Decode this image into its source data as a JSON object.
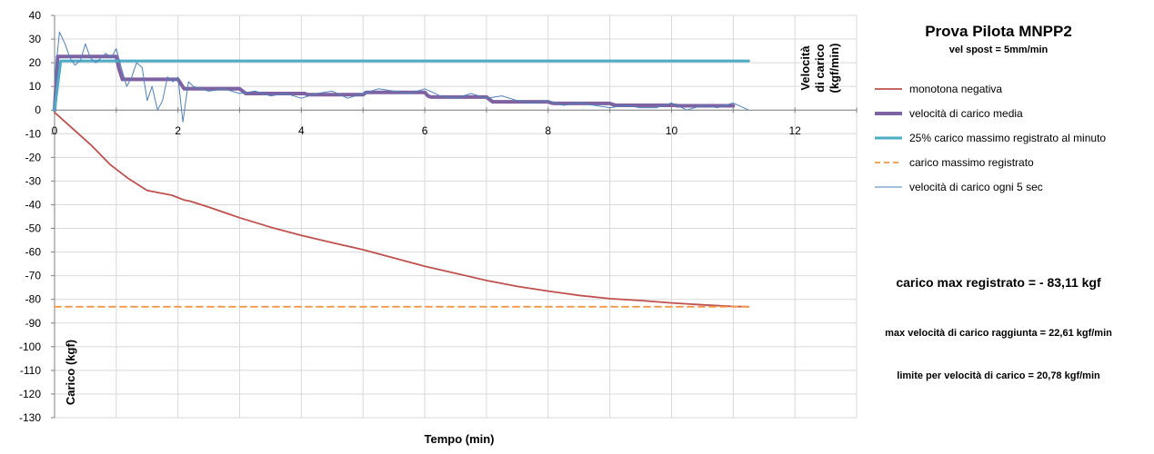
{
  "chart_data": {
    "type": "line",
    "title": "Prova Pilota MNPP2",
    "subtitle": "vel spost = 5mm/min",
    "xlabel": "Tempo (min)",
    "ylabel": "Carico (kgf)",
    "ylabel2": [
      "Velocità",
      "di carico",
      "(kgf/min)"
    ],
    "xlim": [
      0,
      13
    ],
    "ylim": [
      -130,
      40
    ],
    "x_ticks": [
      0,
      2,
      4,
      6,
      8,
      10,
      12
    ],
    "y_ticks": [
      40,
      30,
      20,
      10,
      0,
      -10,
      -20,
      -30,
      -40,
      -50,
      -60,
      -70,
      -80,
      -90,
      -100,
      -110,
      -120,
      -130
    ],
    "grid": true,
    "legend_position": "right",
    "series": [
      {
        "name": "monotona negativa",
        "color": "#C0504D",
        "style": "solid",
        "x": [
          0,
          0.3,
          0.6,
          0.9,
          1.2,
          1.5,
          1.7,
          1.9,
          2.1,
          2.2,
          2.5,
          3.0,
          3.5,
          4.0,
          4.5,
          5.0,
          5.5,
          6.0,
          6.5,
          7.0,
          7.5,
          8.0,
          8.5,
          9.0,
          9.5,
          10.0,
          10.5,
          11.0,
          11.25
        ],
        "y": [
          -1,
          -8,
          -15,
          -23,
          -29,
          -34,
          -35,
          -36,
          -38,
          -38.5,
          -41,
          -45.5,
          -49.5,
          -53,
          -56,
          -59,
          -62.5,
          -66,
          -69,
          -72,
          -74.5,
          -76.5,
          -78.3,
          -79.7,
          -80.5,
          -81.5,
          -82.3,
          -83.0,
          -83.11
        ]
      },
      {
        "name": "velocità di carico media",
        "color": "#7E62A1",
        "style": "thick",
        "x": [
          0,
          0.05,
          0.1,
          1.0,
          1.05,
          1.1,
          2.0,
          2.05,
          2.1,
          3.0,
          3.05,
          3.1,
          4.0,
          4.05,
          4.1,
          5.0,
          5.05,
          5.1,
          6.0,
          6.05,
          6.1,
          7.0,
          7.05,
          7.1,
          8.0,
          8.05,
          8.1,
          9.0,
          9.05,
          9.1,
          10.0,
          10.05,
          10.1,
          11.0
        ],
        "y": [
          0,
          22.6,
          22.6,
          22.6,
          17,
          13,
          13,
          11,
          9,
          9,
          8,
          7,
          7,
          7,
          6.5,
          6.5,
          7.5,
          7.5,
          7.5,
          6,
          5.5,
          5.5,
          4.5,
          3.5,
          3.5,
          3,
          2.8,
          2.8,
          2.3,
          2,
          2,
          2,
          1.8,
          1.8
        ]
      },
      {
        "name": "25% carico massimo  registrato al minuto",
        "color": "#4BACC6",
        "style": "solid-thick",
        "x": [
          0,
          0.1,
          11.25
        ],
        "y": [
          0,
          20.78,
          20.78
        ]
      },
      {
        "name": "carico massimo  registrato",
        "color": "#F79646",
        "style": "dashed",
        "x": [
          0,
          11.25
        ],
        "y": [
          -83.11,
          -83.11
        ]
      },
      {
        "name": "velocità di carico ogni 5 sec",
        "color": "#4F81BD",
        "style": "thin",
        "x": [
          0,
          0.08,
          0.17,
          0.25,
          0.33,
          0.42,
          0.5,
          0.58,
          0.67,
          0.75,
          0.83,
          0.92,
          1.0,
          1.08,
          1.17,
          1.25,
          1.33,
          1.42,
          1.5,
          1.58,
          1.67,
          1.75,
          1.83,
          1.92,
          2.0,
          2.08,
          2.17,
          2.25,
          2.5,
          2.75,
          3.0,
          3.25,
          3.5,
          3.75,
          4.0,
          4.25,
          4.5,
          4.75,
          5.0,
          5.25,
          5.5,
          5.75,
          6.0,
          6.25,
          6.5,
          6.75,
          7.0,
          7.25,
          7.5,
          7.75,
          8.0,
          8.25,
          8.5,
          8.75,
          9.0,
          9.25,
          9.5,
          9.75,
          10.0,
          10.25,
          10.5,
          10.75,
          11.0,
          11.25
        ],
        "y": [
          12,
          33,
          28,
          22,
          19,
          21,
          28,
          22,
          20,
          22,
          24,
          22,
          26,
          18,
          10,
          14,
          20,
          18,
          4,
          10,
          0,
          4,
          14,
          12,
          14,
          -5,
          12,
          10,
          8,
          9,
          7,
          8,
          6,
          7,
          5,
          7,
          8,
          5,
          7,
          9,
          8,
          7,
          9,
          6,
          5,
          7,
          5,
          6,
          4,
          3,
          4,
          2,
          3,
          2,
          1,
          2,
          1,
          1,
          3,
          0,
          2,
          1,
          3,
          0
        ]
      }
    ],
    "annotations": [
      "carico max registrato = - 83,11 kgf",
      "max velocità di carico raggiunta = 22,61 kgf/min",
      "limite per velocità di carico = 20,78 kgf/min"
    ]
  }
}
